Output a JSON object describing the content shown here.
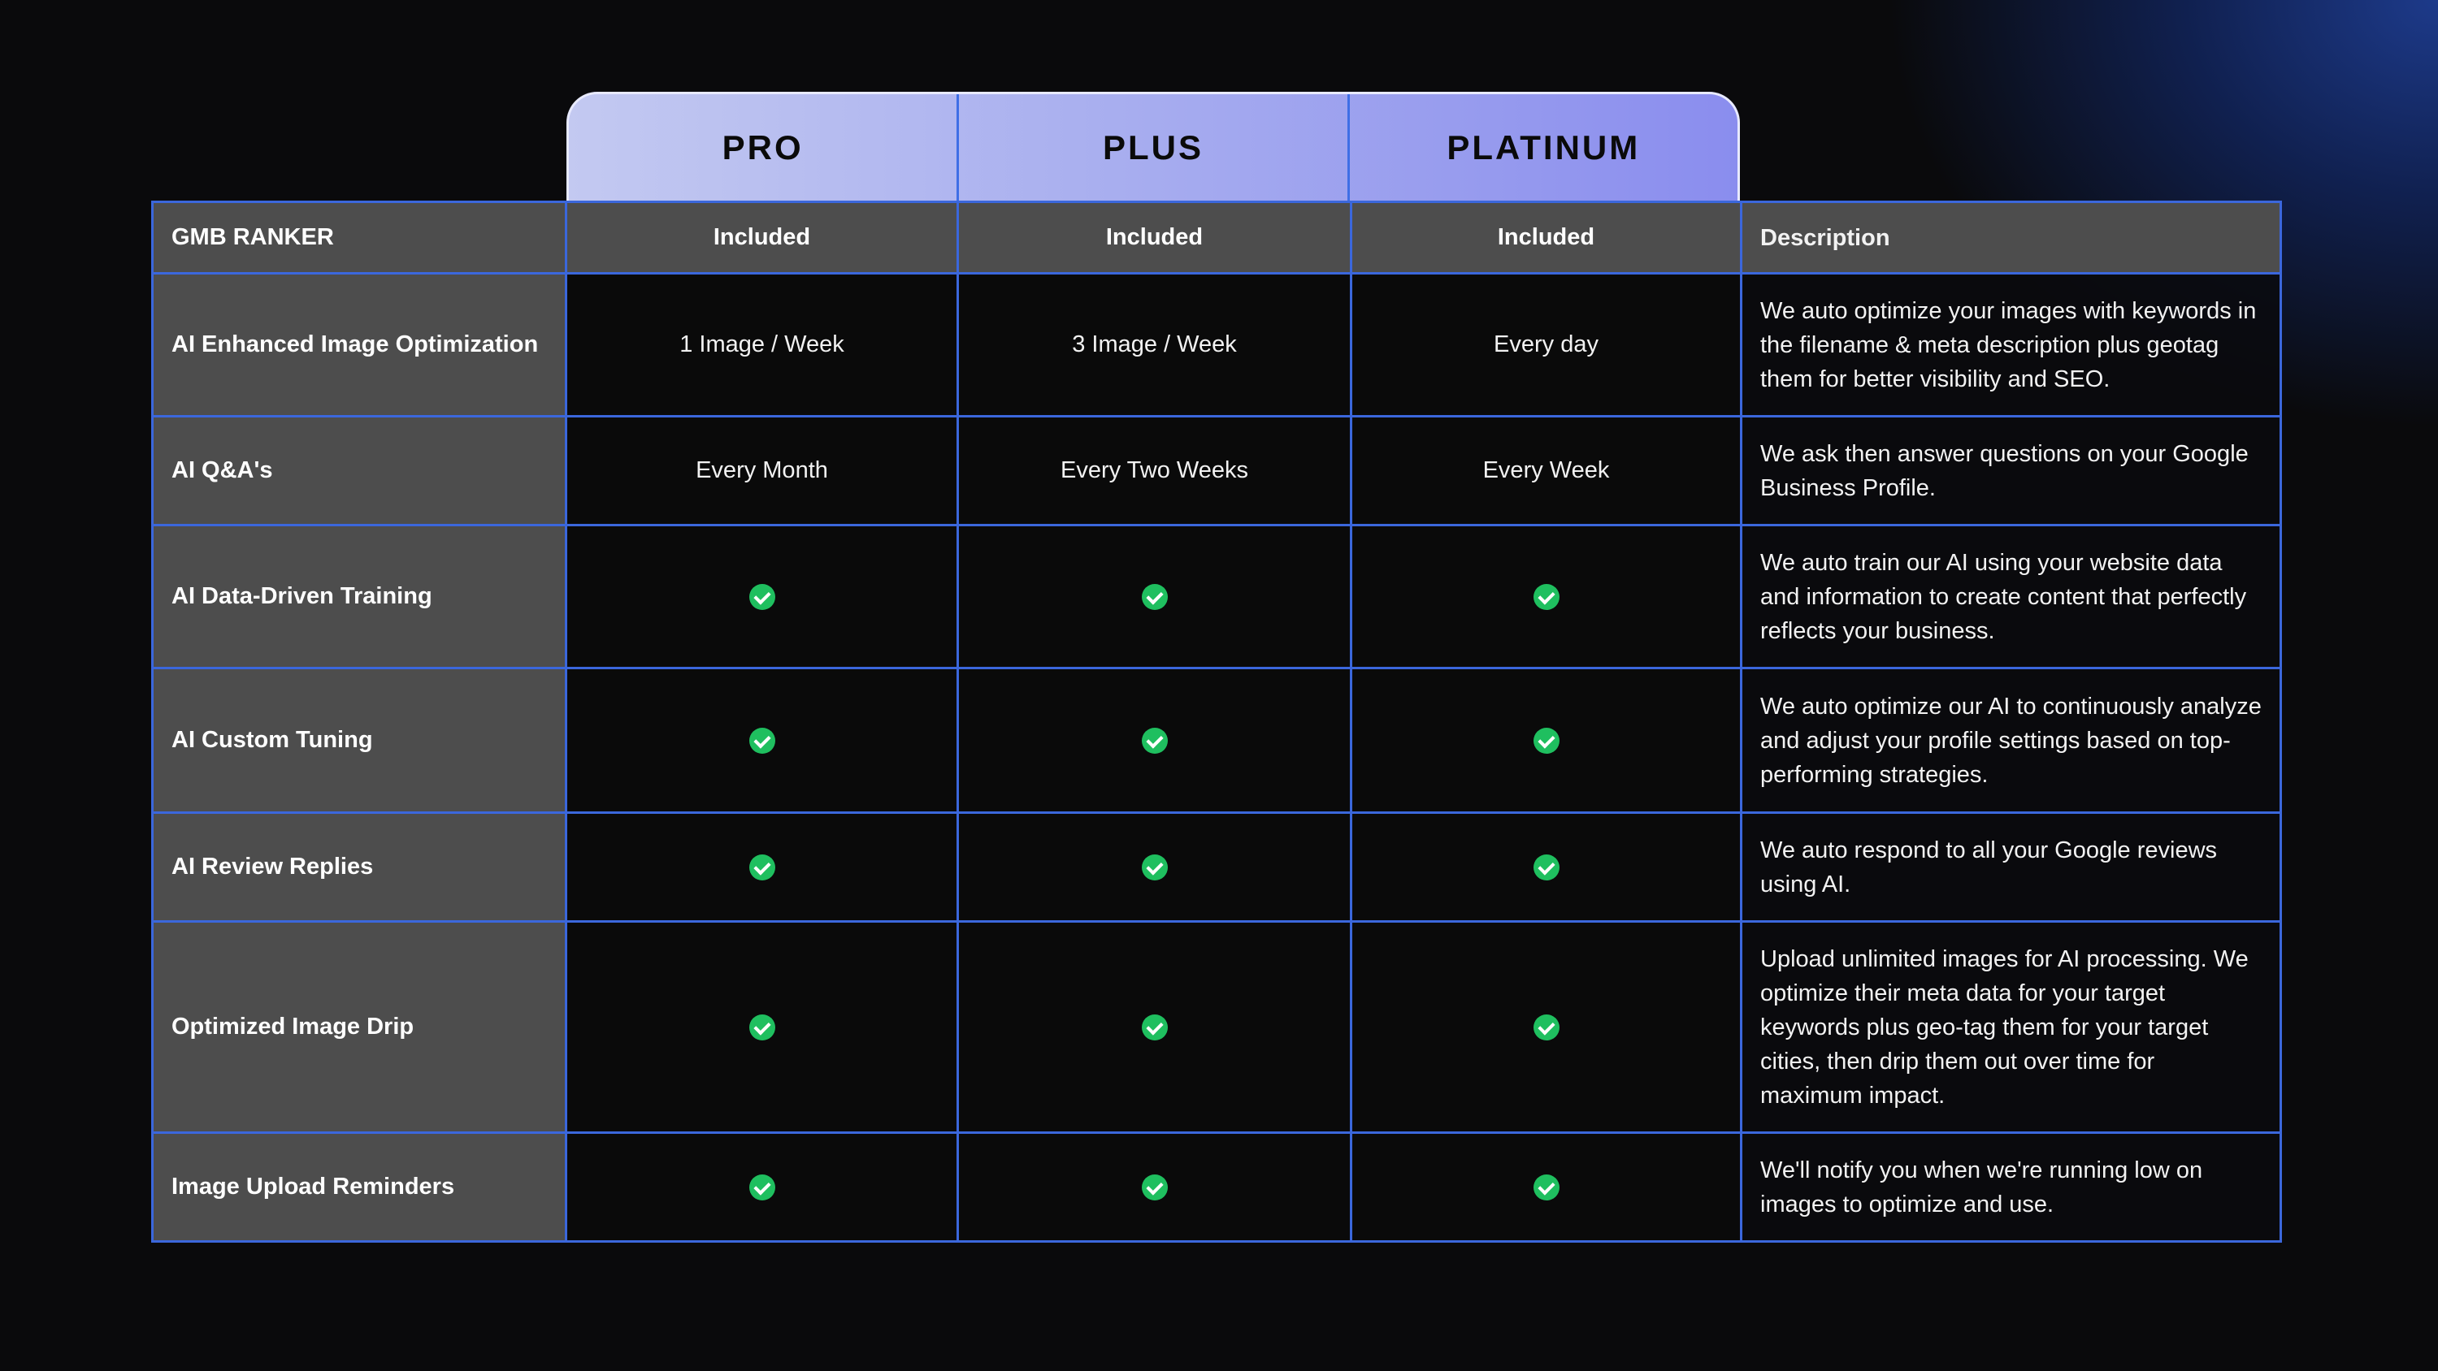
{
  "tiers": [
    "PRO",
    "PLUS",
    "PLATINUM"
  ],
  "header": {
    "label": "GMB RANKER",
    "values": [
      "Included",
      "Included",
      "Included"
    ],
    "description": "Description"
  },
  "rows": [
    {
      "label": "AI Enhanced Image Optimization",
      "values": [
        "1 Image / Week",
        "3 Image / Week",
        "Every day"
      ],
      "description": "We auto optimize your images with keywords in the filename & meta description plus geotag them for better visibility and SEO."
    },
    {
      "label": "AI Q&A's",
      "values": [
        "Every Month",
        "Every Two Weeks",
        "Every Week"
      ],
      "description": "We ask then answer questions on your Google Business Profile."
    },
    {
      "label": "AI Data-Driven Training",
      "values": [
        "check",
        "check",
        "check"
      ],
      "description": "We auto train our AI using your website data and information to create content that perfectly reflects your business."
    },
    {
      "label": "AI Custom Tuning",
      "values": [
        "check",
        "check",
        "check"
      ],
      "description": "We auto optimize our AI to continuously analyze and adjust your profile settings based on top-performing strategies."
    },
    {
      "label": "AI Review Replies",
      "values": [
        "check",
        "check",
        "check"
      ],
      "description": "We auto respond to all your Google reviews using AI."
    },
    {
      "label": "Optimized Image Drip",
      "values": [
        "check",
        "check",
        "check"
      ],
      "description": "Upload unlimited images for AI processing. We optimize their meta data for your target keywords plus geo-tag them for your target cities, then drip them out over time for maximum impact."
    },
    {
      "label": "Image Upload Reminders",
      "values": [
        "check",
        "check",
        "check"
      ],
      "description": "We'll notify you when we're running low on images to optimize and use."
    }
  ],
  "colors": {
    "check": "#1fbf5f",
    "grid": "#3b67dc",
    "label_bg": "#4d4d4d"
  }
}
